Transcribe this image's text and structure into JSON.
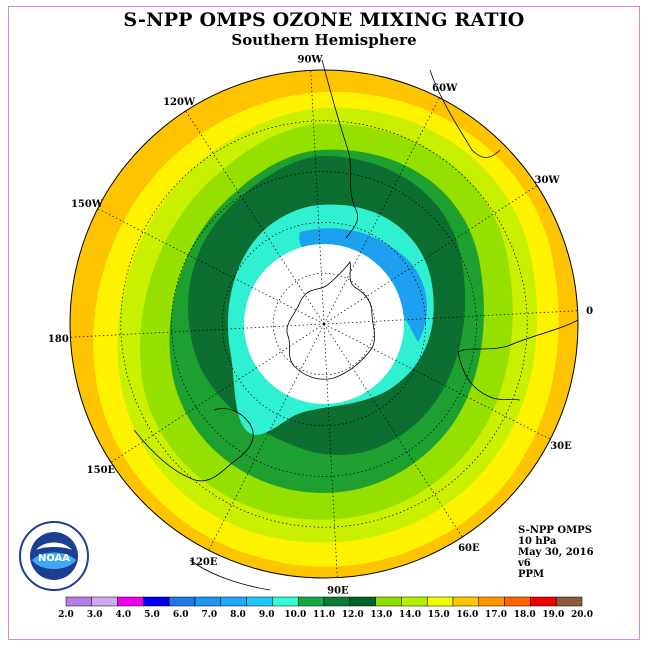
{
  "title": "S-NPP OMPS OZONE MIXING RATIO",
  "subtitle": "Southern Hemisphere",
  "longitude_labels": [
    "90W",
    "60W",
    "30W",
    "0",
    "30E",
    "60E",
    "90E",
    "120E",
    "150E",
    "180",
    "150W",
    "120W"
  ],
  "info": {
    "instrument": "S-NPP OMPS",
    "pressure": "10 hPa",
    "date": "May 30, 2016",
    "version": "v6",
    "units": "PPM"
  },
  "logo": {
    "text": "NOAA",
    "ring_text": "NATIONAL OCEANIC AND ATMOSPHERIC ADMINISTRATION · U.S. DEPARTMENT OF COMMERCE"
  },
  "colorbar": {
    "labels": [
      "2.0",
      "3.0",
      "4.0",
      "5.0",
      "6.0",
      "7.0",
      "8.0",
      "9.0",
      "10.0",
      "11.0",
      "12.0",
      "13.0",
      "14.0",
      "15.0",
      "16.0",
      "17.0",
      "18.0",
      "19.0",
      "20.0"
    ],
    "colors": [
      "#b47ee6",
      "#d2a8f0",
      "#ee00ee",
      "#0000ee",
      "#1e78e6",
      "#1e96f0",
      "#1eaaf8",
      "#1ec8f8",
      "#30ffd8",
      "#16a844",
      "#0a7a34",
      "#006428",
      "#8ce000",
      "#b4f000",
      "#f0ff00",
      "#ffc800",
      "#ff9600",
      "#ff6400",
      "#ee0000",
      "#8c5a3c"
    ]
  },
  "map_bands": [
    {
      "value_label": "16-17",
      "color": "#ffc400"
    },
    {
      "value_label": "15-16",
      "color": "#fff200"
    },
    {
      "value_label": "14-15",
      "color": "#c8f000"
    },
    {
      "value_label": "13-14",
      "color": "#96e000"
    },
    {
      "value_label": "12-13",
      "color": "#1ea030"
    },
    {
      "value_label": "11-12",
      "color": "#0c6e30"
    },
    {
      "value_label": "9-10",
      "color": "#30f0d2"
    },
    {
      "value_label": "8-9",
      "color": "#1ea0f0"
    }
  ]
}
